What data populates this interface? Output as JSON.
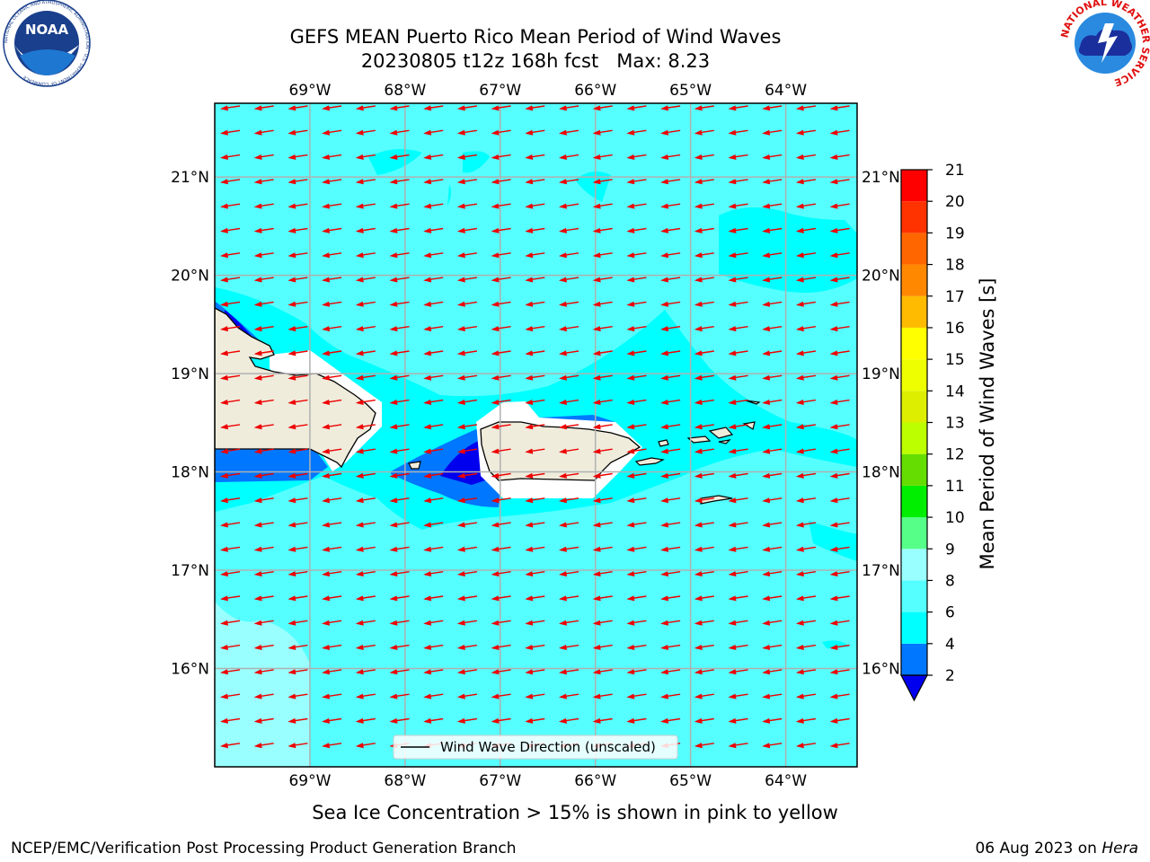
{
  "header": {
    "title_line1": "GEFS MEAN Puerto Rico Mean Period of Wind Waves",
    "title_line2": "20230805 t12z 168h fcst   Max: 8.23"
  },
  "logos": {
    "noaa_text": "NOAA",
    "noaa_ring": "NATIONAL OCEANIC AND ATMOSPHERIC ADMINISTRATION · U.S. DEPARTMENT OF COMMERCE",
    "nws_ring": "NATIONAL WEATHER SERVICE"
  },
  "footer": {
    "sea_ice_note": "Sea Ice Concentration > 15% is shown in pink to yellow",
    "branch": "NCEP/EMC/Verification Post Processing Product Generation Branch",
    "date": "06 Aug 2023 on ",
    "machine": "Hera"
  },
  "legend": {
    "label": "Wind Wave Direction (unscaled)"
  },
  "colors": {
    "land": "#efecdc",
    "ocean_main": "#55ffff",
    "ocean_6_8_light": "#99ffff",
    "ocean_4_6": "#00ffff",
    "ocean_2_4": "#0077ff",
    "ocean_lt2": "#0000ee",
    "arrow": "#ee0000",
    "grid": "#b0b0b0"
  },
  "chart_data": {
    "type": "heatmap",
    "variable": "Mean Period of Wind Waves",
    "units": "s",
    "colorbar_label": "Mean Period of Wind Waves [s]",
    "colorbar": {
      "ticks": [
        2,
        4,
        6,
        8,
        9,
        10,
        11,
        12,
        13,
        14,
        15,
        16,
        17,
        18,
        19,
        20,
        21
      ],
      "colors": [
        "#0077ff",
        "#00ffff",
        "#55ffff",
        "#99ffff",
        "#55ff88",
        "#00ee00",
        "#66dd00",
        "#bbff00",
        "#ddee00",
        "#eeff00",
        "#ffff00",
        "#ffbb00",
        "#ff8800",
        "#ff6600",
        "#ff3300",
        "#ff0000"
      ],
      "extend_min_color": "#0000ee"
    },
    "max": 8.23,
    "lon_range": [
      -70.0,
      -63.25
    ],
    "lat_range": [
      15.0,
      21.75
    ],
    "x_ticks": [
      "69°W",
      "68°W",
      "67°W",
      "66°W",
      "65°W",
      "64°W"
    ],
    "x_tick_values": [
      -69,
      -68,
      -67,
      -66,
      -65,
      -64
    ],
    "y_ticks": [
      "16°N",
      "17°N",
      "18°N",
      "19°N",
      "20°N",
      "21°N"
    ],
    "y_tick_values": [
      16,
      17,
      18,
      19,
      20,
      21
    ],
    "grid": true,
    "legend_position": "bottom-center",
    "wind_direction": "from east-northeast (arrows pointing toward west-southwest)"
  }
}
